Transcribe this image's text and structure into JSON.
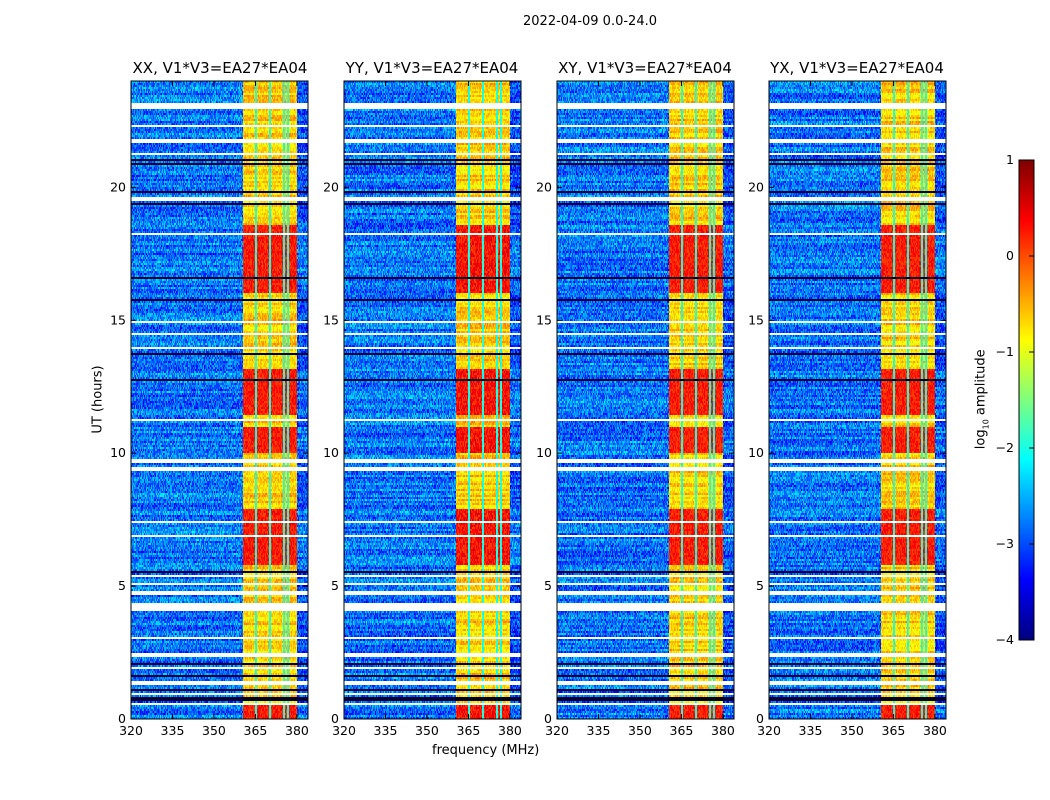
{
  "suptitle": "2022-04-09 0.0-24.0",
  "colors": {
    "flagged": "#ffffff",
    "frame": "#000000"
  },
  "chart_data": {
    "type": "heatmap",
    "colormap": "jet",
    "panels": [
      {
        "title": "XX, V1*V3=EA27*EA04",
        "rfi_strength": 1.0
      },
      {
        "title": "YY, V1*V3=EA27*EA04",
        "rfi_strength": 1.25
      },
      {
        "title": "XY, V1*V3=EA27*EA04",
        "rfi_strength": 0.95
      },
      {
        "title": "YX, V1*V3=EA27*EA04",
        "rfi_strength": 0.95
      }
    ],
    "xlabel": "frequency (MHz)",
    "ylabel": "UT (hours)",
    "xlim": [
      320,
      384
    ],
    "ylim": [
      0,
      24
    ],
    "xticks": [
      "320",
      "335",
      "350",
      "365",
      "380"
    ],
    "yticks": [
      "0",
      "5",
      "10",
      "15",
      "20"
    ],
    "background_log_amplitude": -2.8,
    "rfi_band_mhz": [
      360.5,
      380
    ],
    "rfi_gaps_mhz": [
      365.2,
      370.2,
      375.3,
      376.7
    ],
    "strong_rfi_hours": [
      [
        0,
        0.5
      ],
      [
        5.8,
        7.9
      ],
      [
        10,
        11
      ],
      [
        11.4,
        13.2
      ],
      [
        16,
        18.6
      ]
    ],
    "flagged_hours": [
      [
        0.55,
        0.62
      ],
      [
        0.9,
        0.95
      ],
      [
        1.3,
        1.4
      ],
      [
        1.9,
        1.95
      ],
      [
        2.3,
        2.5
      ],
      [
        3.0,
        3.05
      ],
      [
        3.5,
        3.55
      ],
      [
        4.05,
        4.35
      ],
      [
        4.7,
        4.8
      ],
      [
        5.05,
        5.1
      ],
      [
        5.35,
        5.45
      ],
      [
        6.85,
        6.9
      ],
      [
        7.4,
        7.45
      ],
      [
        9.35,
        9.45
      ],
      [
        9.6,
        9.8
      ],
      [
        11.2,
        11.3
      ],
      [
        13.9,
        14.0
      ],
      [
        14.45,
        14.55
      ],
      [
        14.9,
        15.0
      ],
      [
        17.5,
        17.55
      ],
      [
        18.2,
        18.25
      ],
      [
        19.5,
        19.6
      ],
      [
        20.3,
        20.35
      ],
      [
        21.2,
        21.3
      ],
      [
        21.7,
        21.8
      ],
      [
        22.3,
        22.35
      ],
      [
        22.95,
        23.15
      ]
    ],
    "black_line_hours": [
      0.75,
      1.1,
      1.6,
      2.05,
      5.5,
      12.75,
      13.75,
      15.75,
      16.6,
      19.35,
      19.8,
      20.9,
      21.0
    ],
    "colorbar": {
      "label": "log10 amplitude",
      "label_main": "log",
      "label_sub": "10",
      "label_rest": " amplitude",
      "range": [
        -4,
        1
      ],
      "ticks": [
        "1",
        "0",
        "−1",
        "−2",
        "−3",
        "−4"
      ]
    }
  }
}
